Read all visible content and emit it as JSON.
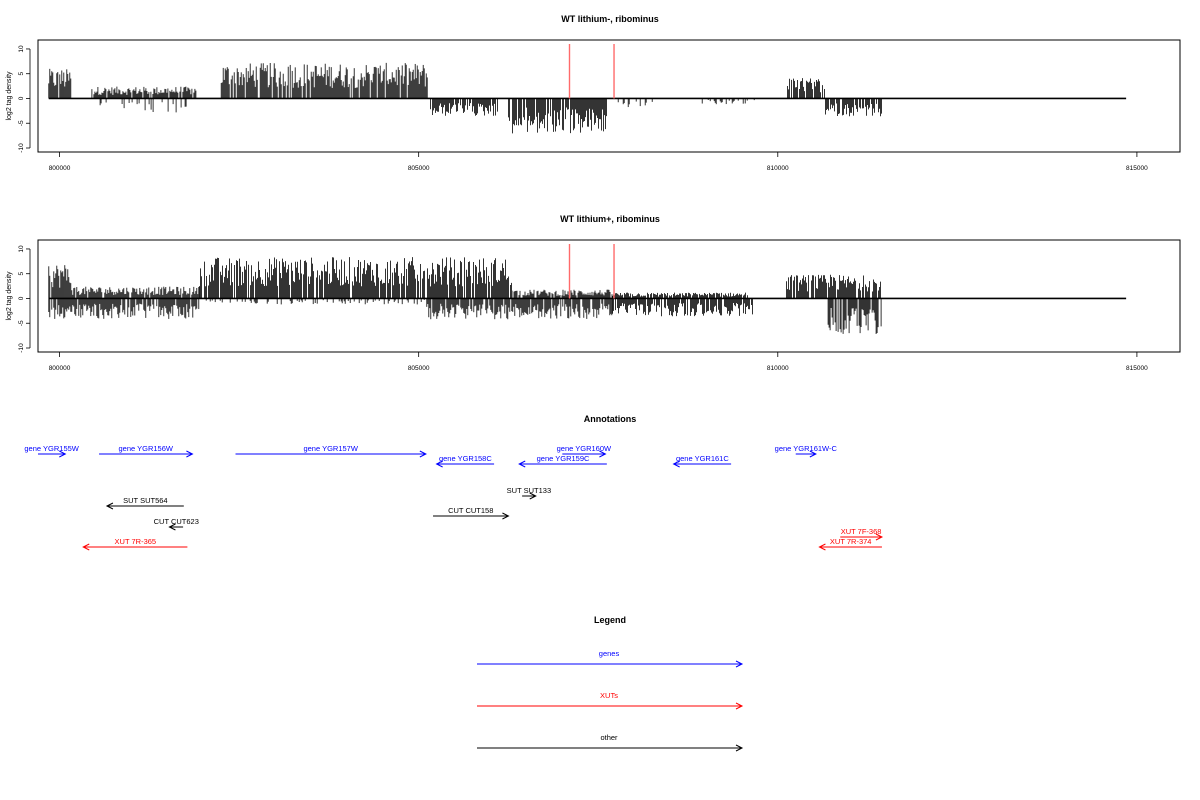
{
  "chart_data": [
    {
      "type": "bar",
      "title": "WT lithium-, ribominus",
      "ylabel": "log2 tag density",
      "xlim": [
        799700,
        815600
      ],
      "ylim": [
        -10,
        11
      ],
      "x_ticks": [
        "800000",
        "805000",
        "810000",
        "815000"
      ],
      "y_ticks": [
        "-10",
        "-5",
        "0",
        "5",
        "10"
      ],
      "baseline_range": [
        799850,
        814850
      ],
      "marker_lines": [
        807100,
        807720
      ],
      "plus_strand_regions": [
        {
          "x_start": 799850,
          "x_end": 800170,
          "height": 5
        },
        {
          "x_start": 800450,
          "x_end": 801900,
          "height": 2
        },
        {
          "x_start": 802250,
          "x_end": 805130,
          "height": 6
        },
        {
          "x_start": 810120,
          "x_end": 810650,
          "height": 3.5
        }
      ],
      "minus_strand_regions": [
        {
          "x_start": 800550,
          "x_end": 801800,
          "depth": -2.5
        },
        {
          "x_start": 805150,
          "x_end": 806100,
          "depth": -3
        },
        {
          "x_start": 806250,
          "x_end": 807620,
          "depth": -6
        },
        {
          "x_start": 807750,
          "x_end": 808300,
          "depth": -1.5
        },
        {
          "x_start": 808850,
          "x_end": 809700,
          "depth": -1
        },
        {
          "x_start": 810650,
          "x_end": 811450,
          "depth": -3
        }
      ]
    },
    {
      "type": "bar",
      "title": "WT lithium+, ribominus",
      "ylabel": "log2 tag density",
      "xlim": [
        799700,
        815600
      ],
      "ylim": [
        -10,
        11
      ],
      "x_ticks": [
        "800000",
        "805000",
        "810000",
        "815000"
      ],
      "y_ticks": [
        "-10",
        "-5",
        "0",
        "5",
        "10"
      ],
      "baseline_range": [
        799850,
        814850
      ],
      "marker_lines": [
        807100,
        807720
      ],
      "plus_strand_regions": [
        {
          "x_start": 799850,
          "x_end": 800170,
          "height": 6
        },
        {
          "x_start": 800170,
          "x_end": 801950,
          "height": 2
        },
        {
          "x_start": 801950,
          "x_end": 806300,
          "height": 7
        },
        {
          "x_start": 806300,
          "x_end": 807700,
          "height": 1.5
        },
        {
          "x_start": 807700,
          "x_end": 809600,
          "height": 1
        },
        {
          "x_start": 810120,
          "x_end": 811450,
          "height": 4
        }
      ],
      "minus_strand_regions": [
        {
          "x_start": 799850,
          "x_end": 801950,
          "depth": -3.5
        },
        {
          "x_start": 802000,
          "x_end": 805100,
          "depth": -1
        },
        {
          "x_start": 805100,
          "x_end": 807700,
          "depth": -3.5
        },
        {
          "x_start": 807700,
          "x_end": 809650,
          "depth": -3
        },
        {
          "x_start": 810700,
          "x_end": 811450,
          "depth": -6
        }
      ]
    }
  ],
  "annotations": {
    "title": "Annotations",
    "items": [
      {
        "label": "gene YGR155W",
        "type": "genes",
        "dir": "right",
        "x_start": 799700,
        "x_end": 800080,
        "row": 1
      },
      {
        "label": "gene YGR156W",
        "type": "genes",
        "dir": "right",
        "x_start": 800550,
        "x_end": 801850,
        "row": 1
      },
      {
        "label": "gene YGR157W",
        "type": "genes",
        "dir": "right",
        "x_start": 802450,
        "x_end": 805100,
        "row": 1
      },
      {
        "label": "gene YGR158C",
        "type": "genes",
        "dir": "left",
        "x_start": 805250,
        "x_end": 806050,
        "row": 2
      },
      {
        "label": "gene YGR159C",
        "type": "genes",
        "dir": "left",
        "x_start": 806400,
        "x_end": 807620,
        "row": 2
      },
      {
        "label": "gene YGR160W",
        "type": "genes",
        "dir": "right",
        "x_start": 807000,
        "x_end": 807600,
        "row": 1
      },
      {
        "label": "gene YGR161C",
        "type": "genes",
        "dir": "left",
        "x_start": 808550,
        "x_end": 809350,
        "row": 2
      },
      {
        "label": "gene YGR161W-C",
        "type": "genes",
        "dir": "right",
        "x_start": 810250,
        "x_end": 810530,
        "row": 1
      },
      {
        "label": "SUT SUT564",
        "type": "other",
        "dir": "left",
        "x_start": 800660,
        "x_end": 801730,
        "row": 4
      },
      {
        "label": "SUT SUT133",
        "type": "other",
        "dir": "right",
        "x_start": 806440,
        "x_end": 806630,
        "row": 3
      },
      {
        "label": "CUT CUT158",
        "type": "other",
        "dir": "right",
        "x_start": 805200,
        "x_end": 806250,
        "row": 5
      },
      {
        "label": "CUT CUT623",
        "type": "other",
        "dir": "left",
        "x_start": 801530,
        "x_end": 801720,
        "row": 6
      },
      {
        "label": "XUT 7R-365",
        "type": "XUTs",
        "dir": "left",
        "x_start": 800330,
        "x_end": 801780,
        "row": 8
      },
      {
        "label": "XUT 7F-368",
        "type": "XUTs",
        "dir": "right",
        "x_start": 810870,
        "x_end": 811450,
        "row": 7
      },
      {
        "label": "XUT 7R-374",
        "type": "XUTs",
        "dir": "left",
        "x_start": 810580,
        "x_end": 811450,
        "row": 8
      }
    ]
  },
  "legend": {
    "title": "Legend",
    "items": [
      {
        "label": "genes",
        "color": "#0000ff"
      },
      {
        "label": "XUTs",
        "color": "#ff0000"
      },
      {
        "label": "other",
        "color": "#000000"
      }
    ]
  },
  "colors": {
    "genes": "#0000ff",
    "XUTs": "#ff0000",
    "other": "#000000",
    "marker": "#ff6b6b"
  }
}
